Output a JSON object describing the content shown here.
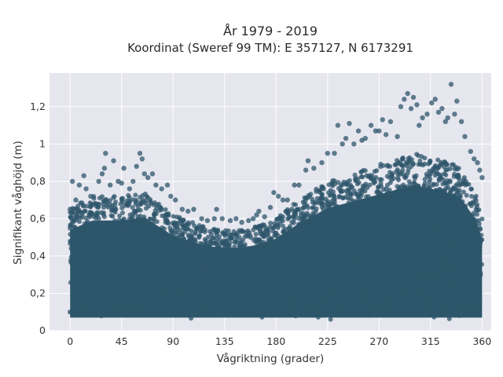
{
  "chart_data": {
    "type": "scatter",
    "title": "År 1979 - 2019",
    "subtitle": "Koordinat (Sweref 99 TM): E 357127, N 6173291",
    "xlabel": "Vågriktning (grader)",
    "ylabel": "Signifikant våghöjd (m)",
    "xlim": [
      -18,
      368
    ],
    "ylim": [
      0,
      1.38
    ],
    "xticks": [
      0,
      45,
      90,
      135,
      180,
      225,
      270,
      315,
      360
    ],
    "xtick_labels": [
      "0",
      "45",
      "90",
      "135",
      "180",
      "225",
      "270",
      "315",
      "360"
    ],
    "yticks": [
      0,
      0.2,
      0.4,
      0.6,
      0.8,
      1.0,
      1.2
    ],
    "ytick_labels": [
      "0",
      "0,2",
      "0,4",
      "0,6",
      "0,8",
      "1",
      "1,2"
    ],
    "grid": true,
    "background": "#e6e6ef",
    "marker_color": "#2e566b",
    "series": [
      {
        "values_note_envelope": [],
        "points": [
          [
            0,
            0.65
          ],
          [
            0,
            0.55
          ],
          [
            0,
            0.1
          ],
          [
            2,
            0.8
          ],
          [
            5,
            0.7
          ],
          [
            8,
            0.78
          ],
          [
            12,
            0.83
          ],
          [
            14,
            0.76
          ],
          [
            18,
            0.72
          ],
          [
            22,
            0.68
          ],
          [
            25,
            0.8
          ],
          [
            28,
            0.84
          ],
          [
            30,
            0.87
          ],
          [
            31,
            0.95
          ],
          [
            35,
            0.78
          ],
          [
            38,
            0.91
          ],
          [
            42,
            0.8
          ],
          [
            45,
            0.79
          ],
          [
            47,
            0.87
          ],
          [
            52,
            0.76
          ],
          [
            55,
            0.8
          ],
          [
            58,
            0.88
          ],
          [
            61,
            0.95
          ],
          [
            63,
            0.92
          ],
          [
            65,
            0.84
          ],
          [
            68,
            0.82
          ],
          [
            72,
            0.84
          ],
          [
            75,
            0.78
          ],
          [
            80,
            0.76
          ],
          [
            85,
            0.78
          ],
          [
            88,
            0.72
          ],
          [
            92,
            0.7
          ],
          [
            98,
            0.65
          ],
          [
            103,
            0.64
          ],
          [
            108,
            0.65
          ],
          [
            115,
            0.6
          ],
          [
            120,
            0.59
          ],
          [
            126,
            0.6
          ],
          [
            128,
            0.65
          ],
          [
            133,
            0.6
          ],
          [
            140,
            0.59
          ],
          [
            145,
            0.6
          ],
          [
            150,
            0.58
          ],
          [
            156,
            0.59
          ],
          [
            160,
            0.6
          ],
          [
            163,
            0.62
          ],
          [
            165,
            0.64
          ],
          [
            170,
            0.61
          ],
          [
            175,
            0.66
          ],
          [
            178,
            0.74
          ],
          [
            182,
            0.72
          ],
          [
            186,
            0.7
          ],
          [
            190,
            0.7
          ],
          [
            196,
            0.78
          ],
          [
            200,
            0.78
          ],
          [
            206,
            0.86
          ],
          [
            208,
            0.91
          ],
          [
            213,
            0.87
          ],
          [
            220,
            0.9
          ],
          [
            225,
            0.95
          ],
          [
            231,
            0.95
          ],
          [
            234,
            1.1
          ],
          [
            238,
            1.0
          ],
          [
            241,
            1.03
          ],
          [
            244,
            1.11
          ],
          [
            248,
            1.0
          ],
          [
            252,
            1.07
          ],
          [
            255,
            1.02
          ],
          [
            258,
            1.03
          ],
          [
            263,
            1.1
          ],
          [
            267,
            1.07
          ],
          [
            270,
            1.07
          ],
          [
            273,
            1.13
          ],
          [
            276,
            1.05
          ],
          [
            280,
            1.12
          ],
          [
            286,
            1.04
          ],
          [
            289,
            1.2
          ],
          [
            292,
            1.24
          ],
          [
            295,
            1.27
          ],
          [
            298,
            1.19
          ],
          [
            300,
            1.25
          ],
          [
            303,
            1.21
          ],
          [
            305,
            1.1
          ],
          [
            308,
            1.14
          ],
          [
            312,
            1.16
          ],
          [
            316,
            1.22
          ],
          [
            319,
            1.24
          ],
          [
            322,
            1.17
          ],
          [
            325,
            1.19
          ],
          [
            328,
            1.12
          ],
          [
            330,
            1.14
          ],
          [
            333,
            1.32
          ],
          [
            336,
            1.16
          ],
          [
            338,
            1.23
          ],
          [
            342,
            1.12
          ],
          [
            345,
            1.04
          ],
          [
            350,
            0.96
          ],
          [
            353,
            0.92
          ],
          [
            356,
            0.9
          ],
          [
            358,
            0.86
          ],
          [
            360,
            0.82
          ]
        ]
      }
    ]
  }
}
